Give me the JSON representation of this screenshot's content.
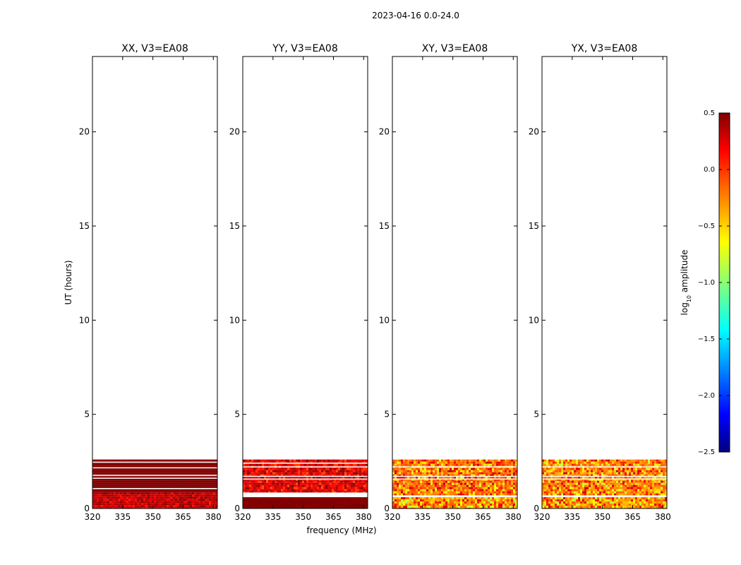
{
  "chart_data": {
    "type": "heatmap",
    "suptitle": "2023-04-16 0.0-24.0",
    "xlabel": "frequency (MHz)",
    "ylabel": "UT (hours)",
    "xlim": [
      320,
      382
    ],
    "ylim": [
      0,
      24
    ],
    "xticks": [
      "320",
      "335",
      "350",
      "365",
      "380"
    ],
    "yticks": [
      "0",
      "5",
      "10",
      "15",
      "20"
    ],
    "xtick_values": [
      320,
      335,
      350,
      365,
      380
    ],
    "ytick_values": [
      0,
      5,
      10,
      15,
      20
    ],
    "data_extent_hours": [
      0,
      2.6
    ],
    "panels": [
      {
        "title": "XX, V3=EA08",
        "bands": [
          {
            "y0": 0.0,
            "y1": 0.85,
            "level": 0.3,
            "noise": 0.25
          },
          {
            "y0": 0.85,
            "y1": 2.6,
            "level": 0.5,
            "noise": 0.02
          }
        ],
        "gaps": [
          1.05,
          1.6,
          1.75,
          2.15,
          2.45
        ]
      },
      {
        "title": "YY, V3=EA08",
        "bands": [
          {
            "y0": 0.0,
            "y1": 0.6,
            "level": 0.5,
            "noise": 0.05
          },
          {
            "y0": 0.85,
            "y1": 2.6,
            "level": 0.2,
            "noise": 0.35
          }
        ],
        "gaps": [
          1.55,
          1.7,
          2.2,
          2.4
        ]
      },
      {
        "title": "XY, V3=EA08",
        "bands": [
          {
            "y0": 0.0,
            "y1": 0.6,
            "level": -0.3,
            "noise": 0.55
          },
          {
            "y0": 0.7,
            "y1": 2.6,
            "level": -0.2,
            "noise": 0.55
          }
        ],
        "gaps": [
          1.55,
          1.7,
          2.2
        ]
      },
      {
        "title": "YX, V3=EA08",
        "bands": [
          {
            "y0": 0.0,
            "y1": 0.6,
            "level": -0.3,
            "noise": 0.55
          },
          {
            "y0": 0.7,
            "y1": 2.6,
            "level": -0.25,
            "noise": 0.55
          }
        ],
        "gaps": [
          1.55,
          1.7,
          2.2
        ]
      }
    ],
    "colorbar": {
      "label_main": "log",
      "label_sub": "10",
      "label_rest": " amplitude",
      "range": [
        -2.5,
        0.5
      ],
      "ticks": [
        "0.5",
        "0.0",
        "−0.5",
        "−1.0",
        "−1.5",
        "−2.0",
        "−2.5"
      ],
      "tick_values": [
        0.5,
        0.0,
        -0.5,
        -1.0,
        -1.5,
        -2.0,
        -2.5
      ],
      "colormap": "jet"
    }
  }
}
